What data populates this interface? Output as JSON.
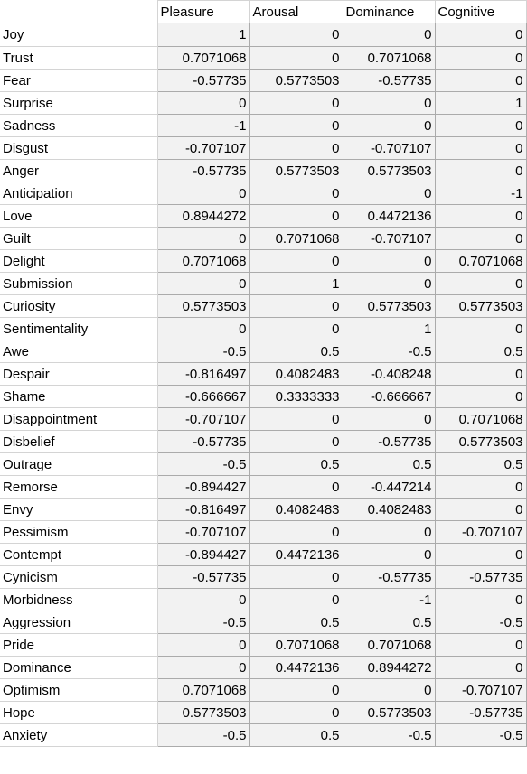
{
  "headers": [
    "Pleasure",
    "Arousal",
    "Dominance",
    "Cognitive"
  ],
  "rows": [
    {
      "label": "Joy",
      "values": [
        "1",
        "0",
        "0",
        "0"
      ]
    },
    {
      "label": "Trust",
      "values": [
        "0.7071068",
        "0",
        "0.7071068",
        "0"
      ]
    },
    {
      "label": "Fear",
      "values": [
        "-0.57735",
        "0.5773503",
        "-0.57735",
        "0"
      ]
    },
    {
      "label": "Surprise",
      "values": [
        "0",
        "0",
        "0",
        "1"
      ]
    },
    {
      "label": "Sadness",
      "values": [
        "-1",
        "0",
        "0",
        "0"
      ]
    },
    {
      "label": "Disgust",
      "values": [
        "-0.707107",
        "0",
        "-0.707107",
        "0"
      ]
    },
    {
      "label": "Anger",
      "values": [
        "-0.57735",
        "0.5773503",
        "0.5773503",
        "0"
      ]
    },
    {
      "label": "Anticipation",
      "values": [
        "0",
        "0",
        "0",
        "-1"
      ]
    },
    {
      "label": "Love",
      "values": [
        "0.8944272",
        "0",
        "0.4472136",
        "0"
      ]
    },
    {
      "label": "Guilt",
      "values": [
        "0",
        "0.7071068",
        "-0.707107",
        "0"
      ]
    },
    {
      "label": "Delight",
      "values": [
        "0.7071068",
        "0",
        "0",
        "0.7071068"
      ]
    },
    {
      "label": "Submission",
      "values": [
        "0",
        "1",
        "0",
        "0"
      ]
    },
    {
      "label": "Curiosity",
      "values": [
        "0.5773503",
        "0",
        "0.5773503",
        "0.5773503"
      ]
    },
    {
      "label": "Sentimentality",
      "values": [
        "0",
        "0",
        "1",
        "0"
      ]
    },
    {
      "label": "Awe",
      "values": [
        "-0.5",
        "0.5",
        "-0.5",
        "0.5"
      ]
    },
    {
      "label": "Despair",
      "values": [
        "-0.816497",
        "0.4082483",
        "-0.408248",
        "0"
      ]
    },
    {
      "label": "Shame",
      "values": [
        "-0.666667",
        "0.3333333",
        "-0.666667",
        "0"
      ]
    },
    {
      "label": "Disappointment",
      "values": [
        "-0.707107",
        "0",
        "0",
        "0.7071068"
      ]
    },
    {
      "label": "Disbelief",
      "values": [
        "-0.57735",
        "0",
        "-0.57735",
        "0.5773503"
      ]
    },
    {
      "label": "Outrage",
      "values": [
        "-0.5",
        "0.5",
        "0.5",
        "0.5"
      ]
    },
    {
      "label": "Remorse",
      "values": [
        "-0.894427",
        "0",
        "-0.447214",
        "0"
      ]
    },
    {
      "label": "Envy",
      "values": [
        "-0.816497",
        "0.4082483",
        "0.4082483",
        "0"
      ]
    },
    {
      "label": "Pessimism",
      "values": [
        "-0.707107",
        "0",
        "0",
        "-0.707107"
      ]
    },
    {
      "label": "Contempt",
      "values": [
        "-0.894427",
        "0.4472136",
        "0",
        "0"
      ]
    },
    {
      "label": "Cynicism",
      "values": [
        "-0.57735",
        "0",
        "-0.57735",
        "-0.57735"
      ]
    },
    {
      "label": "Morbidness",
      "values": [
        "0",
        "0",
        "-1",
        "0"
      ]
    },
    {
      "label": "Aggression",
      "values": [
        "-0.5",
        "0.5",
        "0.5",
        "-0.5"
      ]
    },
    {
      "label": "Pride",
      "values": [
        "0",
        "0.7071068",
        "0.7071068",
        "0"
      ]
    },
    {
      "label": "Dominance",
      "values": [
        "0",
        "0.4472136",
        "0.8944272",
        "0"
      ]
    },
    {
      "label": "Optimism",
      "values": [
        "0.7071068",
        "0",
        "0",
        "-0.707107"
      ]
    },
    {
      "label": "Hope",
      "values": [
        "0.5773503",
        "0",
        "0.5773503",
        "-0.57735"
      ]
    },
    {
      "label": "Anxiety",
      "values": [
        "-0.5",
        "0.5",
        "-0.5",
        "-0.5"
      ]
    }
  ]
}
